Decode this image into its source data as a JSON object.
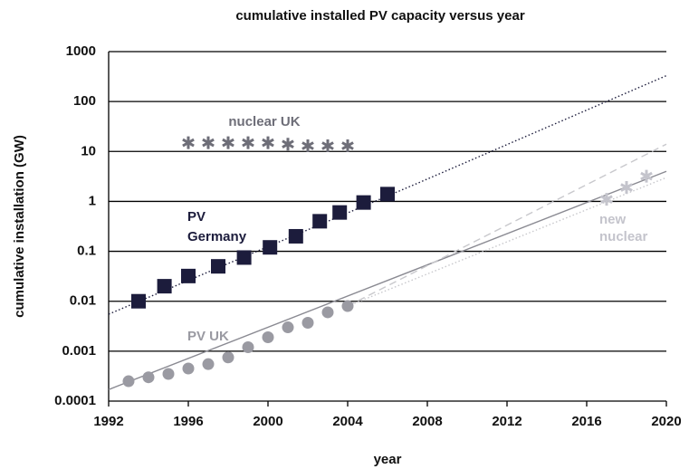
{
  "chart_data": {
    "type": "scatter",
    "title": "cumulative installed PV capacity versus year",
    "x_label": "year",
    "y_label": "cumulative installation (GW)",
    "log_y": true,
    "grid": true,
    "xlim": [
      1992,
      2020
    ],
    "ylim": [
      0.0001,
      1000
    ],
    "xticks": [
      1992,
      1996,
      2000,
      2004,
      2008,
      2012,
      2016,
      2020
    ],
    "yticks": [
      1000,
      100,
      10,
      1,
      0.1,
      0.01,
      0.001,
      0.0001
    ],
    "series": [
      {
        "label": [
          "nuclear UK"
        ],
        "color": "#6e6e78",
        "marker": "asterisk",
        "x": [
          1996,
          1997,
          1998,
          1999,
          2000,
          2001,
          2002,
          2003,
          2004
        ],
        "values": [
          15,
          15,
          15,
          15,
          15,
          14,
          13,
          13,
          13
        ]
      },
      {
        "label": [
          "PV",
          "Germany"
        ],
        "color": "#1c1c3c",
        "marker": "square",
        "x": [
          1993.5,
          1994.8,
          1996,
          1997.5,
          1998.8,
          2000.1,
          2001.4,
          2002.6,
          2003.6,
          2004.8,
          2006
        ],
        "values": [
          0.01,
          0.02,
          0.032,
          0.05,
          0.075,
          0.12,
          0.2,
          0.4,
          0.6,
          0.95,
          1.4
        ]
      },
      {
        "label": [
          "PV UK"
        ],
        "color": "#9a9aa2",
        "marker": "circle",
        "x": [
          1993,
          1994,
          1995,
          1996,
          1997,
          1998,
          1999,
          2000,
          2001,
          2002,
          2003,
          2004
        ],
        "values": [
          0.00025,
          0.0003,
          0.00035,
          0.00045,
          0.00055,
          0.00075,
          0.0012,
          0.0019,
          0.003,
          0.0037,
          0.006,
          0.008
        ]
      },
      {
        "label": [
          "new",
          "nuclear"
        ],
        "color": "#c4c4cc",
        "marker": "asterisk",
        "x": [
          2017,
          2018,
          2019
        ],
        "values": [
          1.1,
          1.9,
          3.2
        ]
      }
    ],
    "trend_lines": [
      {
        "color": "#1c1c3c",
        "style": "dotted",
        "x": [
          1992,
          2007.5,
          2020
        ],
        "values": [
          0.0055,
          2.3,
          330
        ]
      },
      {
        "color": "#8a8a92",
        "style": "solid",
        "x": [
          1992,
          2020
        ],
        "values": [
          0.00017,
          4
        ]
      },
      {
        "color": "#c8c8cc",
        "style": "dashed",
        "x": [
          2004,
          2020
        ],
        "values": [
          0.008,
          14
        ]
      },
      {
        "color": "#c8c8cc",
        "style": "dotted",
        "x": [
          2004,
          2020
        ],
        "values": [
          0.008,
          3
        ]
      }
    ]
  }
}
